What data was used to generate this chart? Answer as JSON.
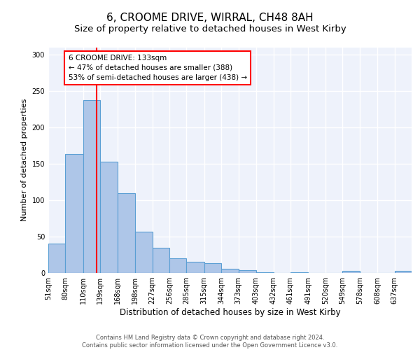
{
  "title1": "6, CROOME DRIVE, WIRRAL, CH48 8AH",
  "title2": "Size of property relative to detached houses in West Kirby",
  "xlabel": "Distribution of detached houses by size in West Kirby",
  "ylabel": "Number of detached properties",
  "bar_values": [
    40,
    163,
    237,
    153,
    110,
    57,
    35,
    20,
    15,
    13,
    6,
    4,
    1,
    0,
    1,
    0,
    0,
    3,
    0,
    0,
    3
  ],
  "bin_edges": [
    51,
    80,
    110,
    139,
    168,
    198,
    227,
    256,
    285,
    315,
    344,
    373,
    403,
    432,
    461,
    491,
    520,
    549,
    578,
    608,
    637,
    666
  ],
  "x_labels": [
    "51sqm",
    "80sqm",
    "110sqm",
    "139sqm",
    "168sqm",
    "198sqm",
    "227sqm",
    "256sqm",
    "285sqm",
    "315sqm",
    "344sqm",
    "373sqm",
    "403sqm",
    "432sqm",
    "461sqm",
    "491sqm",
    "520sqm",
    "549sqm",
    "578sqm",
    "608sqm",
    "637sqm"
  ],
  "bar_color": "#aec6e8",
  "bar_edge_color": "#5a9fd4",
  "bar_edge_width": 0.8,
  "red_line_x": 133,
  "annotation_line1": "6 CROOME DRIVE: 133sqm",
  "annotation_line2": "← 47% of detached houses are smaller (388)",
  "annotation_line3": "53% of semi-detached houses are larger (438) →",
  "ylim": [
    0,
    310
  ],
  "yticks": [
    0,
    50,
    100,
    150,
    200,
    250,
    300
  ],
  "background_color": "#eef2fb",
  "grid_color": "#ffffff",
  "footer_text": "Contains HM Land Registry data © Crown copyright and database right 2024.\nContains public sector information licensed under the Open Government Licence v3.0.",
  "title1_fontsize": 11,
  "title2_fontsize": 9.5,
  "xlabel_fontsize": 8.5,
  "ylabel_fontsize": 8,
  "tick_fontsize": 7,
  "annot_fontsize": 7.5,
  "footer_fontsize": 6
}
